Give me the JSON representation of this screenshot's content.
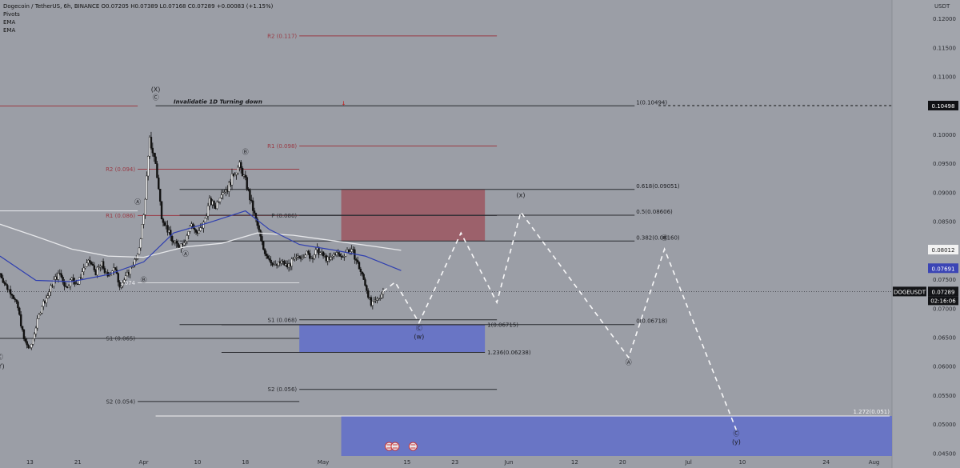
{
  "header": {
    "title_line": "Dogecoin / TetherUS, 6h, BINANCE  O0.07205  H0.07389  L0.07168  C0.07289  +0.00083 (+1.15%)",
    "indicators": [
      "Pivots",
      "EMA",
      "EMA"
    ]
  },
  "chart_data": {
    "type": "candlestick",
    "symbol": "DOGEUSDT",
    "currency": "USDT",
    "timeframe": "6h",
    "exchange": "BINANCE",
    "ohlc": {
      "open": 0.07205,
      "high": 0.07389,
      "low": 0.07168,
      "close": 0.07289,
      "change": 0.00083,
      "change_pct": 1.15
    },
    "ylim": [
      0.0445,
      0.1232
    ],
    "yticks": [
      "0.12000",
      "0.11500",
      "0.11000",
      "0.10500",
      "0.10000",
      "0.09500",
      "0.09000",
      "0.08500",
      "0.08000",
      "0.07500",
      "0.07000",
      "0.06500",
      "0.06000",
      "0.05500",
      "0.05000",
      "0.04500"
    ],
    "xdomain": [
      "2024-03-08",
      "2024-08-04"
    ],
    "xticks": [
      {
        "date": "2024-03-13",
        "label": "13"
      },
      {
        "date": "2024-03-21",
        "label": "21"
      },
      {
        "date": "2024-04-01",
        "label": "Apr"
      },
      {
        "date": "2024-04-10",
        "label": "10"
      },
      {
        "date": "2024-04-18",
        "label": "18"
      },
      {
        "date": "2024-05-01",
        "label": "May"
      },
      {
        "date": "2024-05-15",
        "label": "15"
      },
      {
        "date": "2024-05-23",
        "label": "23"
      },
      {
        "date": "2024-06-01",
        "label": "Jun"
      },
      {
        "date": "2024-06-12",
        "label": "12"
      },
      {
        "date": "2024-06-20",
        "label": "20"
      },
      {
        "date": "2024-07-01",
        "label": "Jul"
      },
      {
        "date": "2024-07-10",
        "label": "10"
      },
      {
        "date": "2024-07-24",
        "label": "24"
      },
      {
        "date": "2024-08-01",
        "label": "Aug"
      }
    ],
    "price_path": [
      [
        "2024-03-08",
        0.076
      ],
      [
        "2024-03-09",
        0.0738
      ],
      [
        "2024-03-10",
        0.0726
      ],
      [
        "2024-03-11",
        0.07
      ],
      [
        "2024-03-12",
        0.0646
      ],
      [
        "2024-03-13",
        0.0628
      ],
      [
        "2024-03-14",
        0.0668
      ],
      [
        "2024-03-15",
        0.0706
      ],
      [
        "2024-03-16",
        0.0722
      ],
      [
        "2024-03-17",
        0.0748
      ],
      [
        "2024-03-18",
        0.076
      ],
      [
        "2024-03-19",
        0.0736
      ],
      [
        "2024-03-20",
        0.075
      ],
      [
        "2024-03-21",
        0.0742
      ],
      [
        "2024-03-22",
        0.077
      ],
      [
        "2024-03-23",
        0.078
      ],
      [
        "2024-03-24",
        0.0762
      ],
      [
        "2024-03-25",
        0.0776
      ],
      [
        "2024-03-26",
        0.0752
      ],
      [
        "2024-03-27",
        0.0772
      ],
      [
        "2024-03-28",
        0.074
      ],
      [
        "2024-03-29",
        0.0752
      ],
      [
        "2024-03-30",
        0.0774
      ],
      [
        "2024-03-31",
        0.0788
      ],
      [
        "2024-04-01",
        0.086
      ],
      [
        "2024-04-02",
        0.099
      ],
      [
        "2024-04-03",
        0.095
      ],
      [
        "2024-04-04",
        0.086
      ],
      [
        "2024-04-05",
        0.0835
      ],
      [
        "2024-04-06",
        0.0812
      ],
      [
        "2024-04-07",
        0.0808
      ],
      [
        "2024-04-08",
        0.082
      ],
      [
        "2024-04-09",
        0.0846
      ],
      [
        "2024-04-10",
        0.0826
      ],
      [
        "2024-04-11",
        0.0846
      ],
      [
        "2024-04-12",
        0.0884
      ],
      [
        "2024-04-13",
        0.0876
      ],
      [
        "2024-04-14",
        0.0902
      ],
      [
        "2024-04-15",
        0.0906
      ],
      [
        "2024-04-16",
        0.0932
      ],
      [
        "2024-04-17",
        0.0946
      ],
      [
        "2024-04-18",
        0.092
      ],
      [
        "2024-04-19",
        0.088
      ],
      [
        "2024-04-20",
        0.0842
      ],
      [
        "2024-04-21",
        0.0802
      ],
      [
        "2024-04-22",
        0.0785
      ],
      [
        "2024-04-23",
        0.0772
      ],
      [
        "2024-04-24",
        0.078
      ],
      [
        "2024-04-25",
        0.0772
      ],
      [
        "2024-04-26",
        0.0782
      ],
      [
        "2024-04-27",
        0.0788
      ],
      [
        "2024-04-28",
        0.0796
      ],
      [
        "2024-04-29",
        0.0788
      ],
      [
        "2024-04-30",
        0.08
      ],
      [
        "2024-05-01",
        0.079
      ],
      [
        "2024-05-02",
        0.0782
      ],
      [
        "2024-05-03",
        0.0796
      ],
      [
        "2024-05-04",
        0.0788
      ],
      [
        "2024-05-05",
        0.08
      ],
      [
        "2024-05-06",
        0.0796
      ],
      [
        "2024-05-07",
        0.077
      ],
      [
        "2024-05-08",
        0.0742
      ],
      [
        "2024-05-09",
        0.0705
      ],
      [
        "2024-05-10",
        0.0715
      ],
      [
        "2024-05-11",
        0.0729
      ]
    ],
    "ema_blue_path": [
      [
        "2024-03-08",
        0.079
      ],
      [
        "2024-03-14",
        0.0748
      ],
      [
        "2024-03-20",
        0.0746
      ],
      [
        "2024-03-26",
        0.0758
      ],
      [
        "2024-04-01",
        0.078
      ],
      [
        "2024-04-06",
        0.083
      ],
      [
        "2024-04-12",
        0.0848
      ],
      [
        "2024-04-18",
        0.0868
      ],
      [
        "2024-04-22",
        0.0836
      ],
      [
        "2024-04-27",
        0.081
      ],
      [
        "2024-05-03",
        0.08
      ],
      [
        "2024-05-08",
        0.079
      ],
      [
        "2024-05-14",
        0.0765
      ]
    ],
    "ema_white_path": [
      [
        "2024-03-08",
        0.0845
      ],
      [
        "2024-03-14",
        0.0824
      ],
      [
        "2024-03-20",
        0.0802
      ],
      [
        "2024-03-26",
        0.079
      ],
      [
        "2024-04-01",
        0.0788
      ],
      [
        "2024-04-08",
        0.0806
      ],
      [
        "2024-04-14",
        0.0812
      ],
      [
        "2024-04-20",
        0.083
      ],
      [
        "2024-04-26",
        0.0826
      ],
      [
        "2024-05-03",
        0.0816
      ],
      [
        "2024-05-10",
        0.0806
      ],
      [
        "2024-05-14",
        0.08
      ]
    ],
    "pivots": [
      {
        "label": "R2 (0.117)",
        "value": 0.117,
        "from": "2024-04-27",
        "to": "2024-05-30",
        "color": "#9a3a44"
      },
      {
        "label": "R1 (0.098)",
        "value": 0.098,
        "from": "2024-04-27",
        "to": "2024-05-30",
        "color": "#9a3a44"
      },
      {
        "label": "S1 (0.068)",
        "value": 0.068,
        "from": "2024-04-27",
        "to": "2024-05-30",
        "color": "#2b2c30"
      },
      {
        "label": "S2 (0.056)",
        "value": 0.056,
        "from": "2024-04-27",
        "to": "2024-05-30",
        "color": "#2b2c30"
      },
      {
        "label": "R2 (0.094)",
        "value": 0.094,
        "from": "2024-03-31",
        "to": "2024-04-27",
        "color": "#9a3a44"
      },
      {
        "label": "R1 (0.086)",
        "value": 0.086,
        "from": "2024-03-31",
        "to": "2024-04-27",
        "color": "#9a3a44"
      },
      {
        "label": "P (0.086)",
        "value": 0.086,
        "from": "2024-04-27",
        "to": "2024-05-30",
        "color": "#2b2c30"
      },
      {
        "label": "0.074",
        "value": 0.0744,
        "from": "2024-03-31",
        "to": "2024-04-27",
        "color": "#d9dade"
      },
      {
        "label": "S1 (0.065)",
        "value": 0.0648,
        "from": "2024-03-31",
        "to": "2024-04-27",
        "color": "#2b2c30"
      },
      {
        "label": "S2 (0.054)",
        "value": 0.0539,
        "from": "2024-03-31",
        "to": "2024-04-27",
        "color": "#2b2c30"
      }
    ],
    "fib_levels": [
      {
        "label": "1(0.10494)",
        "value": 0.10494,
        "color": "#2b2c30"
      },
      {
        "label": "0.618(0.09051)",
        "value": 0.09051,
        "color": "#2b2c30"
      },
      {
        "label": "0.5(0.08606)",
        "value": 0.08606,
        "color": "#2b2c30"
      },
      {
        "label": "0.382(0.08160)",
        "value": 0.0816,
        "color": "#2b2c30"
      },
      {
        "label": "0(0.06718)",
        "value": 0.06718,
        "color": "#2b2c30"
      }
    ],
    "fib2_levels": [
      {
        "label": "1(0.06715)",
        "value": 0.06715
      },
      {
        "label": "1.236(0.06238)",
        "value": 0.06238
      }
    ],
    "extension_label": "1.272(0.051)",
    "extension_value": 0.0514,
    "zones": [
      {
        "name": "red-zone",
        "from": "2024-05-04",
        "to": "2024-05-28",
        "top": 0.09051,
        "bottom": 0.0816,
        "color": "#9c5a65"
      },
      {
        "name": "blue-zone-w",
        "from": "2024-04-27",
        "to": "2024-05-28",
        "top": 0.06715,
        "bottom": 0.06238,
        "color": "#6470c9"
      },
      {
        "name": "blue-zone-y",
        "from": "2024-05-04",
        "to": "2024-08-04",
        "top": 0.0514,
        "bottom": 0.0445,
        "color": "#6470c9"
      }
    ],
    "forecast_path": [
      [
        "2024-05-11",
        0.0729
      ],
      [
        "2024-05-13",
        0.0745
      ],
      [
        "2024-05-17",
        0.0675
      ],
      [
        "2024-05-24",
        0.083
      ],
      [
        "2024-05-30",
        0.071
      ],
      [
        "2024-06-03",
        0.0866
      ],
      [
        "2024-06-21",
        0.0615
      ],
      [
        "2024-06-27",
        0.0802
      ],
      [
        "2024-07-09",
        0.049
      ]
    ],
    "invalidation_label": "Invalidatie 1D   Turning down",
    "invalidation_value": 0.10494,
    "dashed_price_value": 0.10498,
    "price_labels": [
      {
        "value": 0.10498,
        "text": "0.10498",
        "bg": "#101114",
        "fg": "#ffffff"
      },
      {
        "value": 0.08012,
        "text": "0.08012",
        "bg": "#f2f2f2",
        "fg": "#222222"
      },
      {
        "value": 0.07691,
        "text": "0.07691",
        "bg": "#3b45b5",
        "fg": "#ffffff"
      },
      {
        "value": 0.07289,
        "text": "0.07289",
        "bg": "#131417",
        "fg": "#ffffff"
      }
    ],
    "countdown": "02:16:06",
    "wave_labels": [
      {
        "text": "(X)",
        "date": "2024-04-03",
        "value": 0.1074
      },
      {
        "text": "Ⓒ",
        "date": "2024-04-03",
        "value": 0.106
      },
      {
        "text": "Ⓐ",
        "date": "2024-03-31",
        "value": 0.088
      },
      {
        "text": "Ⓑ",
        "date": "2024-04-01",
        "value": 0.0745
      },
      {
        "text": "Ⓐ",
        "date": "2024-04-08",
        "value": 0.079
      },
      {
        "text": "Ⓑ",
        "date": "2024-04-18",
        "value": 0.0966
      },
      {
        "text": "Ⓒ",
        "date": "2024-03-08",
        "value": 0.0612
      },
      {
        "text": "(Y)",
        "date": "2024-03-08",
        "value": 0.0596
      },
      {
        "text": "Ⓒ",
        "date": "2024-05-17",
        "value": 0.0662
      },
      {
        "text": "(w)",
        "date": "2024-05-17",
        "value": 0.0647
      },
      {
        "text": "(x)",
        "date": "2024-06-03",
        "value": 0.0892
      },
      {
        "text": "Ⓑ",
        "date": "2024-06-27",
        "value": 0.0818
      },
      {
        "text": "Ⓐ",
        "date": "2024-06-21",
        "value": 0.0603
      },
      {
        "text": "Ⓒ",
        "date": "2024-07-09",
        "value": 0.048
      },
      {
        "text": "(y)",
        "date": "2024-07-09",
        "value": 0.0466
      }
    ]
  }
}
